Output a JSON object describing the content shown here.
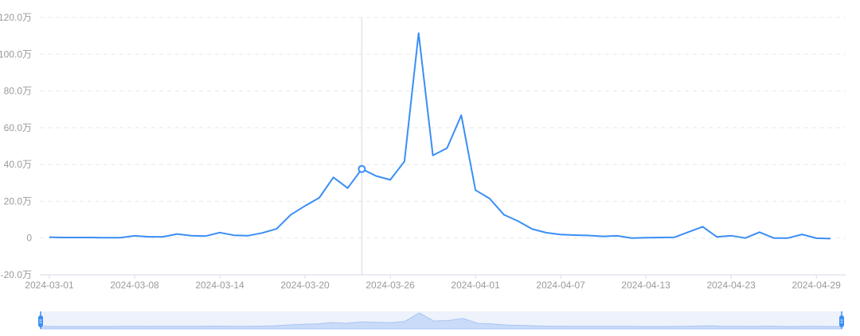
{
  "chart_data": {
    "type": "line",
    "title": "",
    "xlabel": "",
    "ylabel": "",
    "y_unit_suffix": "万",
    "ylim": [
      -20,
      120
    ],
    "y_ticks": [
      "-20.0万",
      "0",
      "20.0万",
      "40.0万",
      "60.0万",
      "80.0万",
      "100.0万",
      "120.0万"
    ],
    "y_tick_values": [
      -20,
      0,
      20,
      40,
      60,
      80,
      100,
      120
    ],
    "grid": true,
    "x_tick_labels": [
      {
        "index": 0,
        "label": "2024-03-01"
      },
      {
        "index": 6,
        "label": "2024-03-08"
      },
      {
        "index": 12,
        "label": "2024-03-14"
      },
      {
        "index": 18,
        "label": "2024-03-20"
      },
      {
        "index": 24,
        "label": "2024-03-26"
      },
      {
        "index": 30,
        "label": "2024-04-01"
      },
      {
        "index": 36,
        "label": "2024-04-07"
      },
      {
        "index": 42,
        "label": "2024-04-13"
      },
      {
        "index": 48,
        "label": "2024-04-23"
      },
      {
        "index": 54,
        "label": "2024-04-29"
      }
    ],
    "highlighted_index": 22,
    "series": [
      {
        "color": "#3a8ef6",
        "values": [
          0.5,
          0.3,
          0.3,
          0.3,
          0.2,
          0.2,
          1.2,
          0.7,
          0.7,
          2.2,
          1.3,
          1.1,
          3.0,
          1.5,
          1.3,
          2.8,
          5.0,
          12.7,
          17.5,
          21.9,
          33.0,
          27.2,
          37.6,
          33.8,
          31.7,
          41.7,
          111.5,
          45.0,
          48.9,
          66.8,
          26.1,
          21.5,
          12.7,
          9.2,
          4.9,
          2.9,
          1.9,
          1.6,
          1.4,
          0.9,
          1.2,
          0.0,
          0.2,
          0.3,
          0.4,
          3.3,
          6.2,
          0.6,
          1.3,
          0.0,
          3.2,
          0.0,
          0.0,
          2.0,
          -0.1,
          -0.3
        ]
      }
    ],
    "data_zoom": {
      "start_percent": 0,
      "end_percent": 100
    }
  }
}
